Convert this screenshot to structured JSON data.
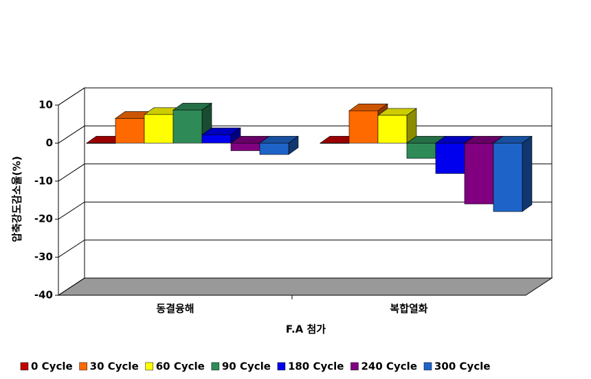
{
  "chart_data": {
    "type": "bar3d",
    "ylabel": "압축강도감소율(%)",
    "xlabel": "F.A 첨가",
    "categories": [
      "동결융해",
      "복합열화"
    ],
    "series": [
      {
        "name": "0 Cycle",
        "color": "#c00000",
        "values": [
          0,
          0
        ]
      },
      {
        "name": "30 Cycle",
        "color": "#ff6a00",
        "values": [
          6.5,
          8.5
        ]
      },
      {
        "name": "60 Cycle",
        "color": "#ffff00",
        "values": [
          7.5,
          7.3
        ]
      },
      {
        "name": "90 Cycle",
        "color": "#2e8b57",
        "values": [
          8.7,
          -4
        ]
      },
      {
        "name": "180 Cycle",
        "color": "#0000ee",
        "values": [
          2.2,
          -8
        ]
      },
      {
        "name": "240 Cycle",
        "color": "#800080",
        "values": [
          -2,
          -16
        ]
      },
      {
        "name": "300 Cycle",
        "color": "#1e64c8",
        "values": [
          -3,
          -18
        ]
      }
    ],
    "ylim": [
      -40,
      10
    ],
    "yticks": [
      -40,
      -30,
      -20,
      -10,
      0,
      10
    ],
    "grid": true,
    "legend": "bottom"
  }
}
